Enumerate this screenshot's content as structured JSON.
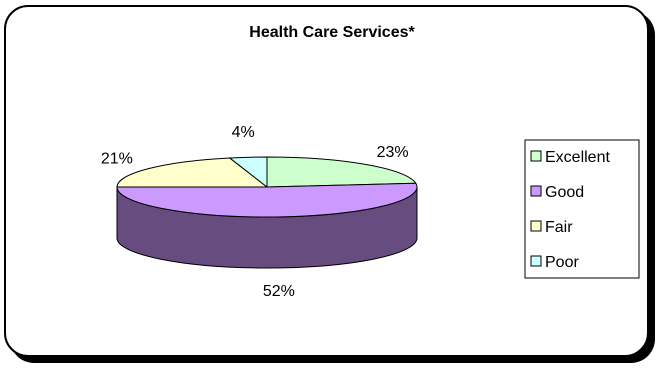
{
  "chart_data": {
    "type": "pie",
    "title": "Health Care Services*",
    "categories": [
      "Excellent",
      "Good",
      "Fair",
      "Poor"
    ],
    "values": [
      23,
      52,
      21,
      4
    ],
    "value_labels": [
      "23%",
      "52%",
      "21%",
      "4%"
    ],
    "colors": {
      "Excellent": "#ccffcc",
      "Good": "#cc99ff",
      "Fair": "#ffffcc",
      "Poor": "#ccffff"
    },
    "side_colors": {
      "Excellent": "#667f66",
      "Good": "#664c7f",
      "Fair": "#7f7f66",
      "Poor": "#667f7f"
    },
    "style": "3d",
    "legend": "right"
  }
}
